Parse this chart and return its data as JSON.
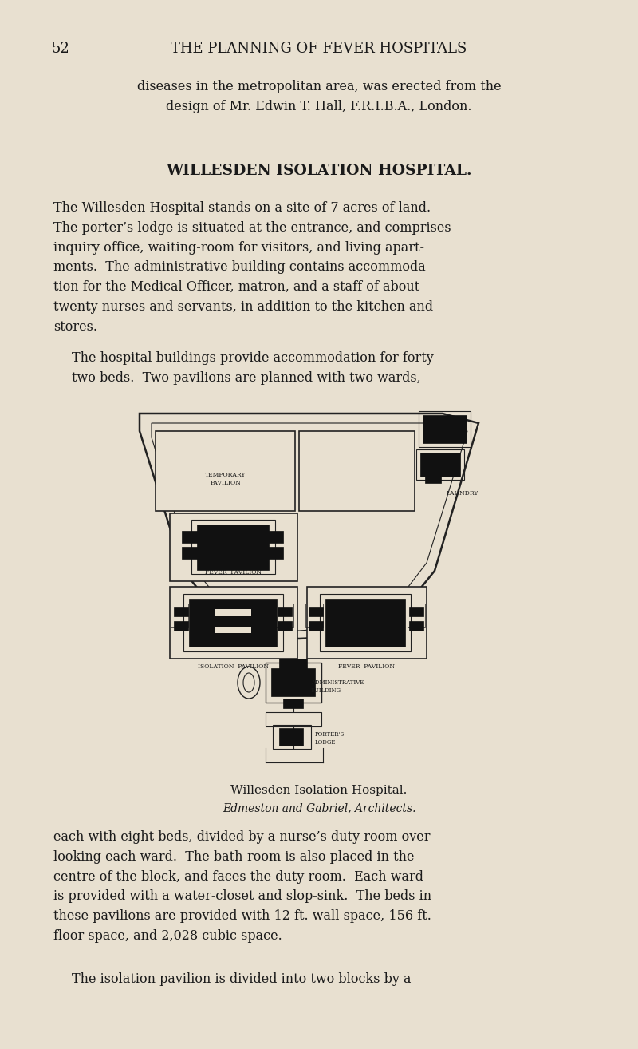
{
  "bg_color": "#e8e0d0",
  "text_color": "#1a1a1a",
  "page_num": "52",
  "page_header": "THE PLANNING OF FEVER HOSPITALS",
  "para1": "diseases in the metropolitan area, was erected from the\ndesign of Mr. Edwin T. Hall, F.R.I.B.A., London.",
  "section_title": "WILLESDEN ISOLATION HOSPITAL.",
  "body_text": [
    "The Willesden Hospital stands on a site of 7 acres of land.\nThe porter’s lodge is situated at the entrance, and comprises\ninquiry office, waiting-room for visitors, and living apart-\nments.  The administrative building contains accommoda-\ntion for the Medical Officer, matron, and a staff of about\ntwenty nurses and servants, in addition to the kitchen and\nstores.",
    "The hospital buildings provide accommodation for forty-\ntwo beds.  Two pavilions are planned with two wards,"
  ],
  "caption_line1": "Willesden Isolation Hospital.",
  "caption_line2": "Edmeston and Gabriel, Architects.",
  "body_text2": [
    "each with eight beds, divided by a nurse’s duty room over-\nlooking each ward.  The bath-room is also placed in the\ncentre of the block, and faces the duty room.  Each ward\nis provided with a water-closet and slop-sink.  The beds in\nthese pavilions are provided with 12 ft. wall space, 156 ft.\nfloor space, and 2,028 cubic space.",
    "The isolation pavilion is divided into two blocks by a"
  ]
}
